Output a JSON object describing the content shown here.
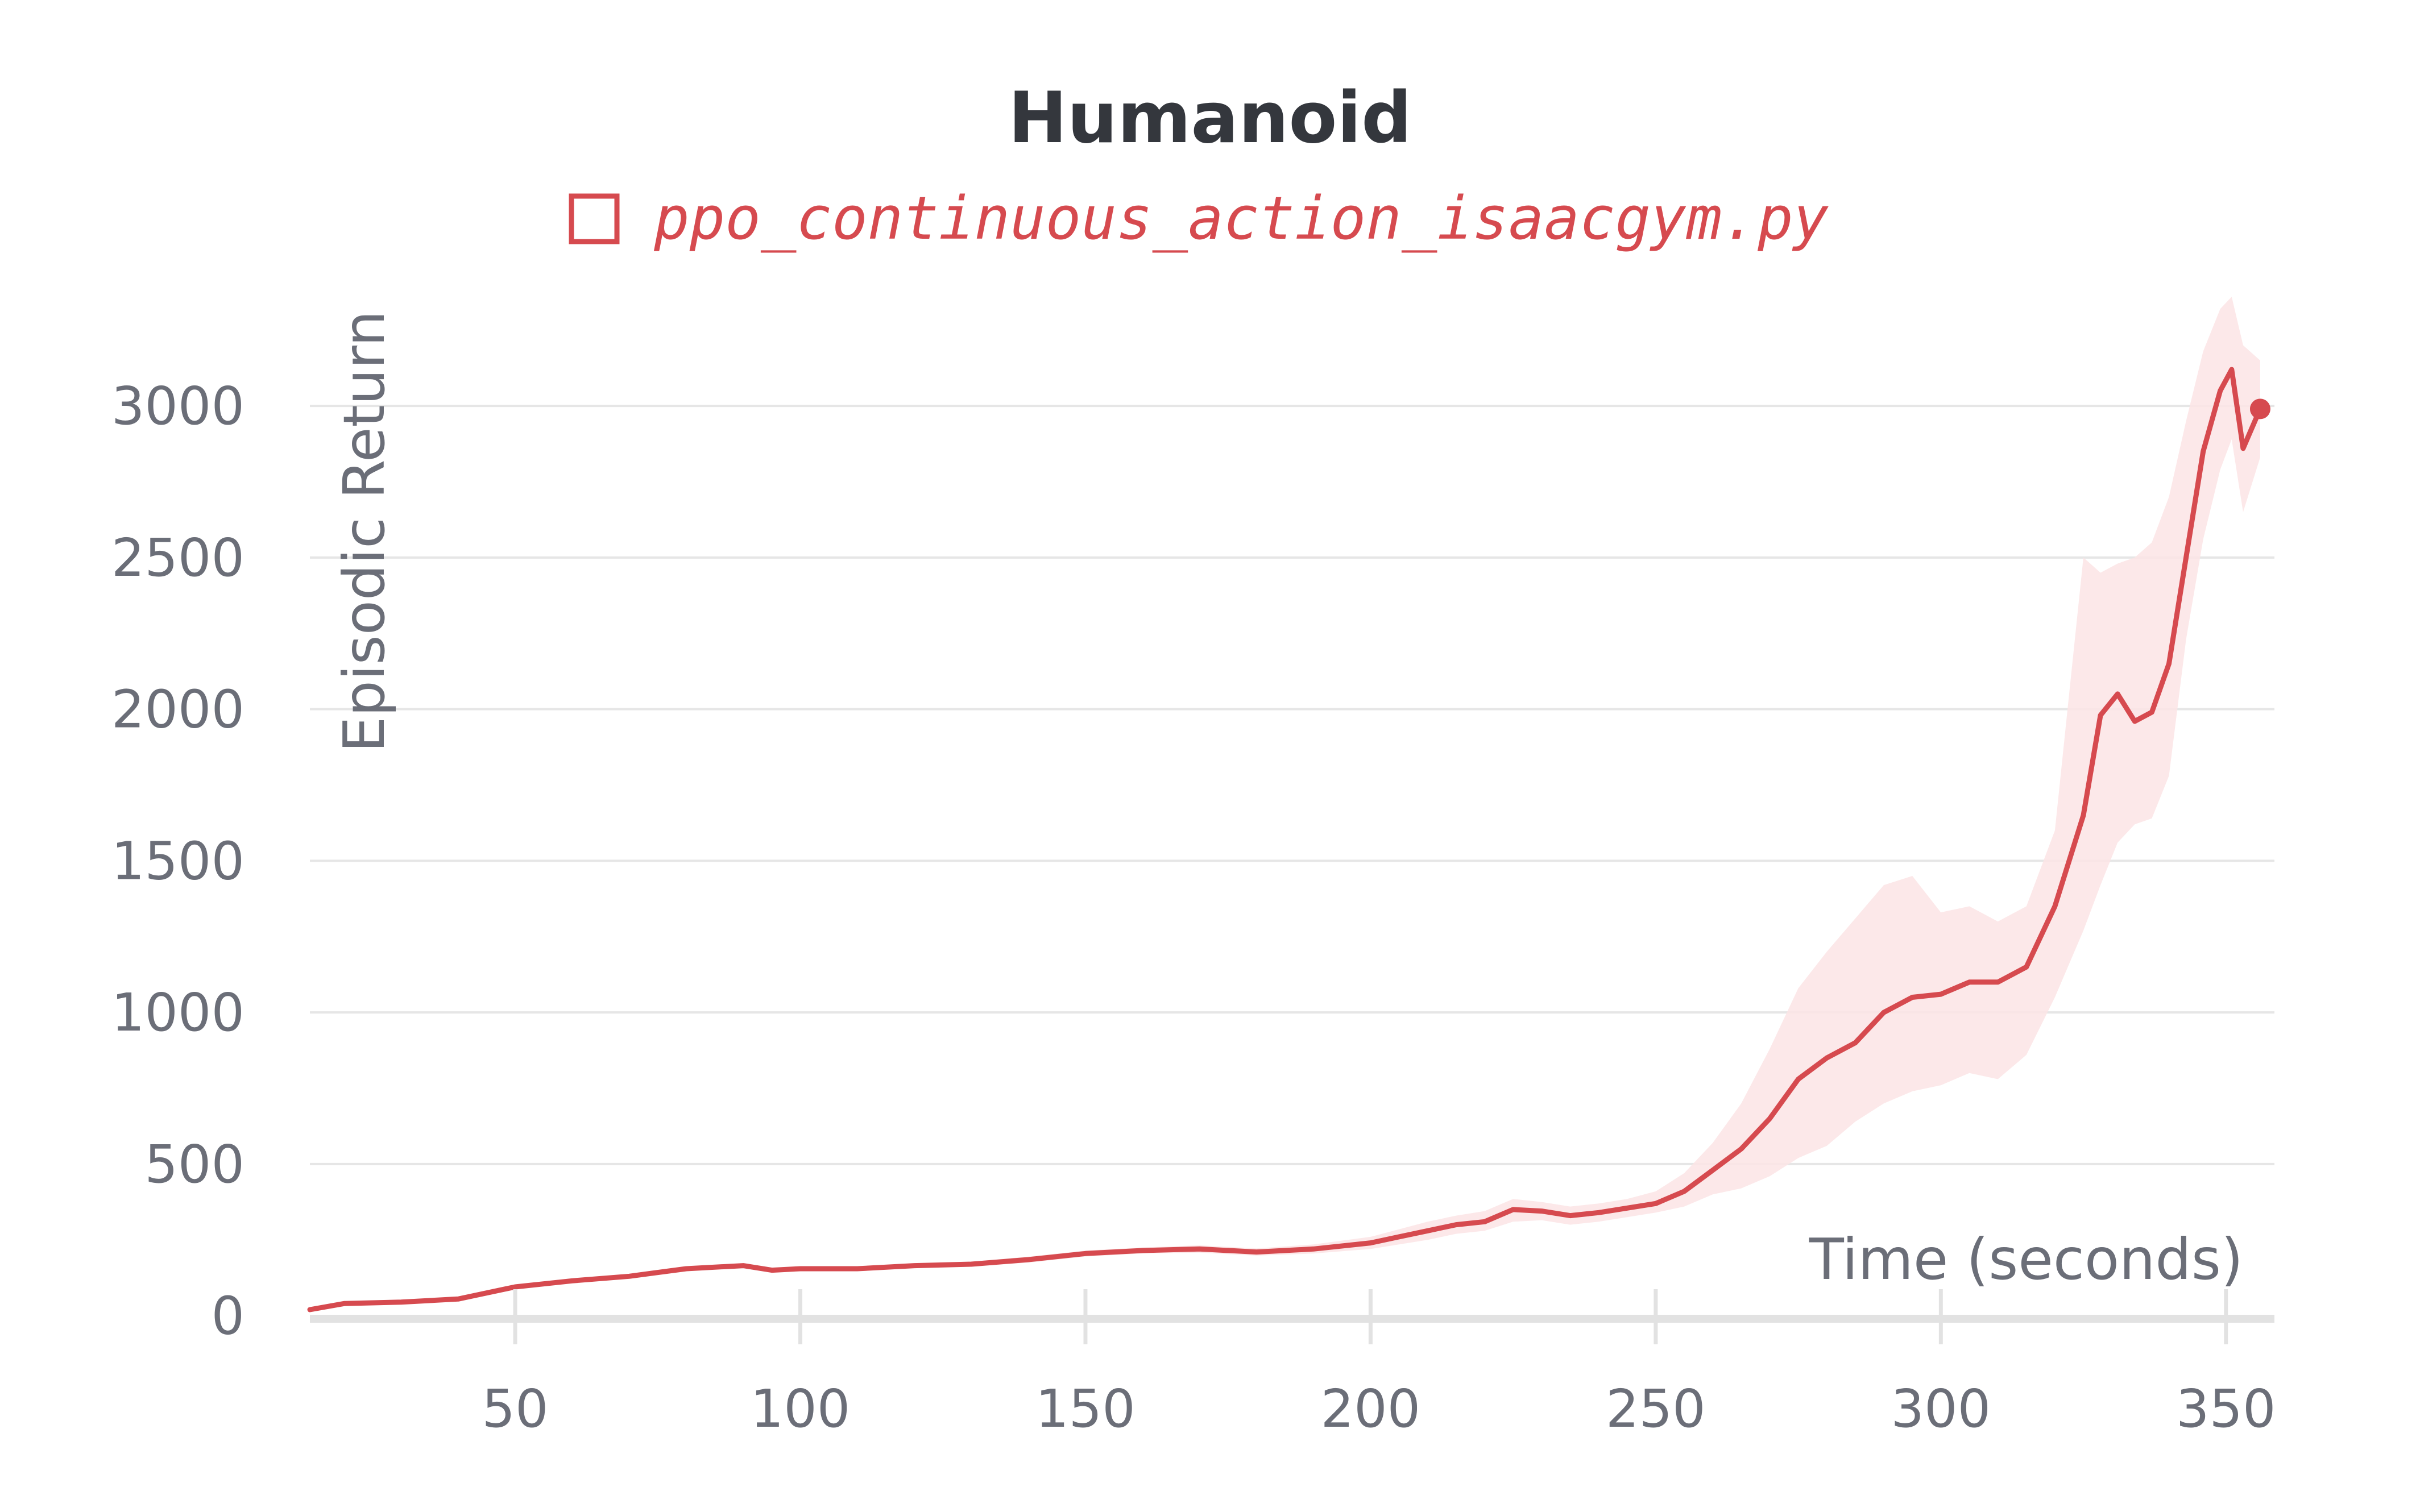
{
  "chart_data": {
    "type": "line",
    "title": "Humanoid",
    "xlabel": "Time (seconds)",
    "ylabel": "Episodic Return",
    "xlim": [
      14,
      358
    ],
    "ylim": [
      -10,
      3420
    ],
    "x_ticks": [
      50,
      100,
      150,
      200,
      250,
      300,
      350
    ],
    "y_ticks": [
      0,
      500,
      1000,
      1500,
      2000,
      2500,
      3000
    ],
    "grid": "horizontal",
    "legend_position": "top-center",
    "colors": {
      "line": "#d64a4f",
      "band": "#fbe4e5",
      "grid": "#e6e6e6",
      "axis": "#e2e2e2",
      "text": "#6b6e78",
      "title": "#34373d"
    },
    "series": [
      {
        "name": "ppo_continuous_action_isaacgym.py",
        "x": [
          14,
          20,
          30,
          40,
          50,
          60,
          70,
          80,
          90,
          95,
          100,
          110,
          120,
          130,
          140,
          150,
          160,
          170,
          180,
          190,
          200,
          205,
          210,
          215,
          220,
          225,
          230,
          235,
          240,
          245,
          250,
          255,
          260,
          265,
          270,
          275,
          280,
          285,
          290,
          295,
          300,
          305,
          310,
          315,
          320,
          325,
          328,
          331,
          334,
          337,
          340,
          343,
          346,
          349,
          351,
          353,
          356
        ],
        "y": [
          20,
          40,
          45,
          55,
          95,
          115,
          130,
          155,
          165,
          150,
          155,
          155,
          165,
          170,
          185,
          205,
          215,
          220,
          210,
          220,
          240,
          260,
          280,
          300,
          310,
          350,
          345,
          330,
          340,
          355,
          370,
          410,
          480,
          550,
          650,
          780,
          850,
          900,
          1000,
          1050,
          1060,
          1100,
          1100,
          1150,
          1350,
          1650,
          1980,
          2050,
          1960,
          1990,
          2150,
          2500,
          2850,
          3050,
          3120,
          2860,
          2990
        ],
        "band_upper": [
          25,
          45,
          50,
          60,
          100,
          120,
          135,
          160,
          172,
          158,
          162,
          162,
          172,
          178,
          195,
          215,
          225,
          232,
          222,
          235,
          260,
          285,
          310,
          330,
          345,
          385,
          375,
          360,
          370,
          385,
          410,
          470,
          570,
          700,
          880,
          1080,
          1200,
          1310,
          1420,
          1450,
          1330,
          1350,
          1300,
          1350,
          1600,
          2500,
          2450,
          2480,
          2500,
          2550,
          2700,
          2950,
          3180,
          3320,
          3360,
          3200,
          3150
        ],
        "band_lower": [
          15,
          35,
          40,
          50,
          90,
          110,
          125,
          150,
          158,
          142,
          148,
          148,
          158,
          162,
          175,
          195,
          205,
          208,
          198,
          205,
          220,
          235,
          250,
          270,
          280,
          310,
          315,
          300,
          310,
          325,
          340,
          360,
          400,
          420,
          460,
          520,
          560,
          640,
          700,
          740,
          760,
          800,
          780,
          860,
          1050,
          1270,
          1420,
          1560,
          1620,
          1640,
          1780,
          2230,
          2560,
          2790,
          2890,
          2650,
          2830
        ]
      }
    ]
  }
}
